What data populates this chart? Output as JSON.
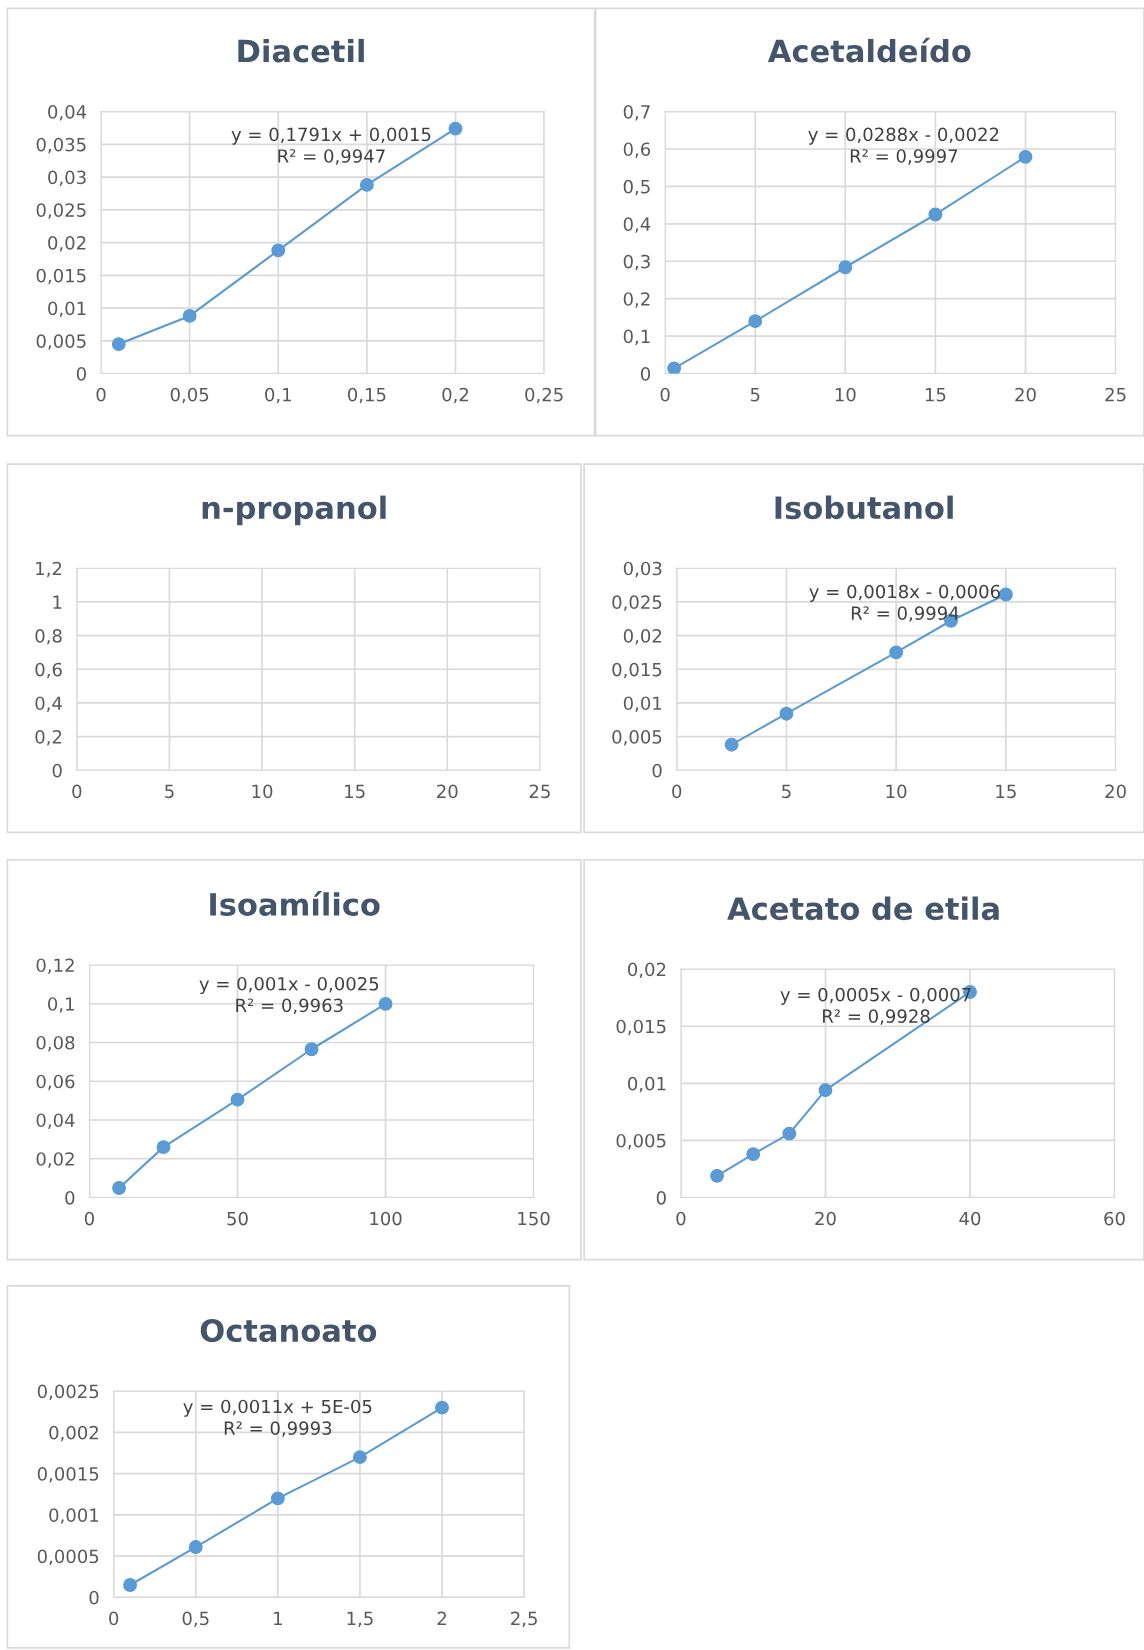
{
  "chart_data": [
    {
      "type": "line",
      "title": "Diacetil",
      "marker": "circle",
      "grid": true,
      "xlim": [
        0,
        0.25
      ],
      "ylim": [
        0,
        0.04
      ],
      "xticks": [
        0,
        {
          "value": 0.05,
          "label": "0,05"
        },
        {
          "value": 0.1,
          "label": "0,1"
        },
        {
          "value": 0.15,
          "label": "0,15"
        },
        {
          "value": 0.2,
          "label": "0,2"
        },
        {
          "value": 0.25,
          "label": "0,25"
        }
      ],
      "yticks": [
        0,
        {
          "value": 0.005,
          "label": "0,005"
        },
        {
          "value": 0.01,
          "label": "0,01"
        },
        {
          "value": 0.015,
          "label": "0,015"
        },
        {
          "value": 0.02,
          "label": "0,02"
        },
        {
          "value": 0.025,
          "label": "0,025"
        },
        {
          "value": 0.03,
          "label": "0,03"
        },
        {
          "value": 0.035,
          "label": "0,035"
        },
        {
          "value": 0.04,
          "label": "0,04"
        }
      ],
      "series": [
        {
          "color": "#5b9bd5",
          "x": [
            0.01,
            0.05,
            0.1,
            0.15,
            0.2
          ],
          "values": [
            0.0045,
            0.0088,
            0.0188,
            0.0288,
            0.0374
          ]
        }
      ],
      "annotations": [
        "y = 0,1791x + 0,0015\nR² = 0,9947"
      ]
    },
    {
      "type": "line",
      "title": "Acetaldeído",
      "marker": "circle",
      "grid": true,
      "xlim": [
        0,
        25
      ],
      "ylim": [
        0,
        0.7
      ],
      "xticks": [
        0,
        5,
        10,
        15,
        20,
        25
      ],
      "yticks": [
        0,
        {
          "value": 0.1,
          "label": "0,1"
        },
        {
          "value": 0.2,
          "label": "0,2"
        },
        {
          "value": 0.3,
          "label": "0,3"
        },
        {
          "value": 0.4,
          "label": "0,4"
        },
        {
          "value": 0.5,
          "label": "0,5"
        },
        {
          "value": 0.6,
          "label": "0,6"
        },
        {
          "value": 0.7,
          "label": "0,7"
        }
      ],
      "series": [
        {
          "color": "#5b9bd5",
          "x": [
            0.5,
            5,
            10,
            15,
            20
          ],
          "values": [
            0.014,
            0.14,
            0.284,
            0.425,
            0.579
          ]
        }
      ],
      "annotations": [
        "y = 0,0288x - 0,0022\nR² = 0,9997"
      ]
    },
    {
      "type": "line",
      "title": "n-propanol",
      "grid": true,
      "xlim": [
        0,
        25
      ],
      "ylim": [
        0,
        1.2
      ],
      "xticks": [
        0,
        5,
        10,
        15,
        20,
        25
      ],
      "yticks": [
        0,
        {
          "value": 0.2,
          "label": "0,2"
        },
        {
          "value": 0.4,
          "label": "0,4"
        },
        {
          "value": 0.6,
          "label": "0,6"
        },
        {
          "value": 0.8,
          "label": "0,8"
        },
        1,
        {
          "value": 1.2,
          "label": "1,2"
        }
      ]
    },
    {
      "type": "line",
      "title": "Isobutanol",
      "marker": "circle",
      "grid": true,
      "xlim": [
        0,
        20
      ],
      "ylim": [
        0,
        0.03
      ],
      "xticks": [
        0,
        5,
        10,
        15,
        20
      ],
      "yticks": [
        0,
        {
          "value": 0.005,
          "label": "0,005"
        },
        {
          "value": 0.01,
          "label": "0,01"
        },
        {
          "value": 0.015,
          "label": "0,015"
        },
        {
          "value": 0.02,
          "label": "0,02"
        },
        {
          "value": 0.025,
          "label": "0,025"
        },
        {
          "value": 0.03,
          "label": "0,03"
        }
      ],
      "series": [
        {
          "color": "#5b9bd5",
          "x": [
            2.5,
            5,
            10,
            12.5,
            15
          ],
          "values": [
            0.0038,
            0.0084,
            0.0175,
            0.0222,
            0.0261
          ]
        }
      ],
      "annotations": [
        "y = 0,0018x - 0,0006\nR² = 0,9994"
      ]
    },
    {
      "type": "line",
      "title": "Isoamílico",
      "marker": "circle",
      "grid": true,
      "xlim": [
        0,
        150
      ],
      "ylim": [
        0,
        0.12
      ],
      "xticks": [
        0,
        50,
        100,
        150
      ],
      "yticks": [
        0,
        {
          "value": 0.02,
          "label": "0,02"
        },
        {
          "value": 0.04,
          "label": "0,04"
        },
        {
          "value": 0.06,
          "label": "0,06"
        },
        {
          "value": 0.08,
          "label": "0,08"
        },
        {
          "value": 0.1,
          "label": "0,1"
        },
        {
          "value": 0.12,
          "label": "0,12"
        }
      ],
      "series": [
        {
          "color": "#5b9bd5",
          "x": [
            10,
            25,
            50,
            75,
            100
          ],
          "values": [
            0.0049,
            0.026,
            0.0505,
            0.0765,
            0.0999
          ]
        }
      ],
      "annotations": [
        "y = 0,001x - 0,0025\nR² = 0,9963"
      ]
    },
    {
      "type": "line",
      "title": "Acetato de etila",
      "marker": "circle",
      "grid": true,
      "xlim": [
        0,
        60
      ],
      "ylim": [
        0,
        0.02
      ],
      "xticks": [
        0,
        20,
        40,
        60
      ],
      "yticks": [
        0,
        {
          "value": 0.005,
          "label": "0,005"
        },
        {
          "value": 0.01,
          "label": "0,01"
        },
        {
          "value": 0.015,
          "label": "0,015"
        },
        {
          "value": 0.02,
          "label": "0,02"
        }
      ],
      "series": [
        {
          "color": "#5b9bd5",
          "x": [
            5,
            10,
            15,
            20,
            40
          ],
          "values": [
            0.0019,
            0.0038,
            0.0056,
            0.0094,
            0.018
          ]
        }
      ],
      "annotations": [
        "y = 0,0005x - 0,0007\nR² = 0,9928"
      ]
    },
    {
      "type": "line",
      "title": "Octanoato",
      "marker": "circle",
      "grid": true,
      "xlim": [
        0,
        2.5
      ],
      "ylim": [
        0,
        0.0025
      ],
      "xticks": [
        0,
        {
          "value": 0.5,
          "label": "0,5"
        },
        1,
        {
          "value": 1.5,
          "label": "1,5"
        },
        2,
        {
          "value": 2.5,
          "label": "2,5"
        }
      ],
      "yticks": [
        0,
        {
          "value": 0.0005,
          "label": "0,0005"
        },
        {
          "value": 0.001,
          "label": "0,001"
        },
        {
          "value": 0.0015,
          "label": "0,0015"
        },
        {
          "value": 0.002,
          "label": "0,002"
        },
        {
          "value": 0.0025,
          "label": "0,0025"
        }
      ],
      "series": [
        {
          "color": "#5b9bd5",
          "x": [
            0.1,
            0.5,
            1,
            1.5,
            2
          ],
          "values": [
            0.00015,
            0.00061,
            0.0012,
            0.0017,
            0.0023
          ]
        }
      ],
      "annotations": [
        "y = 0,0011x + 5E-05\nR² = 0,9993"
      ]
    }
  ]
}
